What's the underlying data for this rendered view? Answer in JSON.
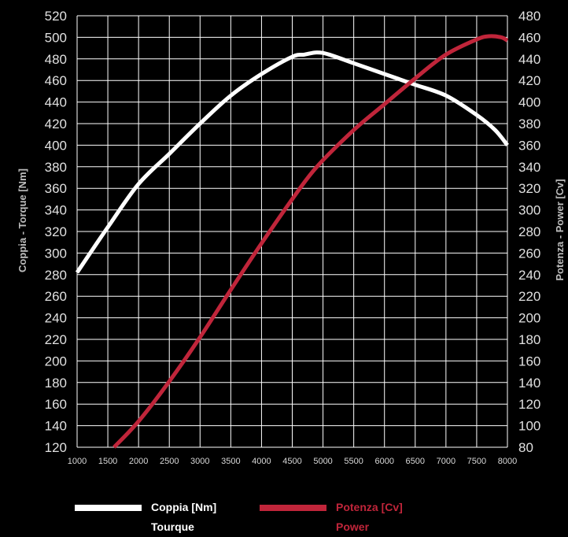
{
  "chart_data": {
    "type": "line",
    "title": "",
    "xlabel": "",
    "ylabel_left": "Coppia - Torque [Nm]",
    "ylabel_right": "Potenza - Power [Cv]",
    "xlim": [
      1000,
      8000
    ],
    "ylim_left": [
      120,
      520
    ],
    "ylim_right": [
      80,
      480
    ],
    "x_ticks": [
      1000,
      1500,
      2000,
      2500,
      3000,
      3500,
      4000,
      4500,
      5000,
      5500,
      6000,
      6500,
      7000,
      7500,
      8000
    ],
    "y_ticks_left": [
      120,
      140,
      160,
      180,
      200,
      220,
      240,
      260,
      280,
      300,
      320,
      340,
      360,
      380,
      400,
      420,
      440,
      460,
      480,
      500,
      520
    ],
    "y_ticks_right": [
      80,
      100,
      120,
      140,
      160,
      180,
      200,
      220,
      240,
      260,
      280,
      300,
      320,
      340,
      360,
      380,
      400,
      420,
      440,
      460,
      480
    ],
    "grid": true,
    "background": "#000000",
    "grid_color": "#ffffff",
    "series": [
      {
        "name": "Coppia [Nm]",
        "name2": "Tourque",
        "axis": "left",
        "color": "#ffffff",
        "x": [
          1000,
          1500,
          2000,
          2500,
          3000,
          3500,
          4000,
          4500,
          4700,
          4900,
          5100,
          5500,
          6000,
          6500,
          7000,
          7500,
          7800,
          8000
        ],
        "y": [
          282,
          324,
          364,
          392,
          420,
          446,
          466,
          482,
          484,
          486,
          484,
          476,
          466,
          456,
          446,
          428,
          414,
          400
        ]
      },
      {
        "name": "Potenza [Cv]",
        "name2": "Power",
        "axis": "right",
        "color": "#c0253a",
        "x": [
          1600,
          2000,
          2500,
          3000,
          3500,
          4000,
          4500,
          4900,
          5500,
          6000,
          6500,
          7000,
          7500,
          7700,
          7900,
          8000
        ],
        "y": [
          80,
          104,
          141,
          182,
          226,
          269,
          310,
          340,
          374,
          398,
          422,
          444,
          458,
          461,
          460,
          457
        ]
      }
    ]
  }
}
